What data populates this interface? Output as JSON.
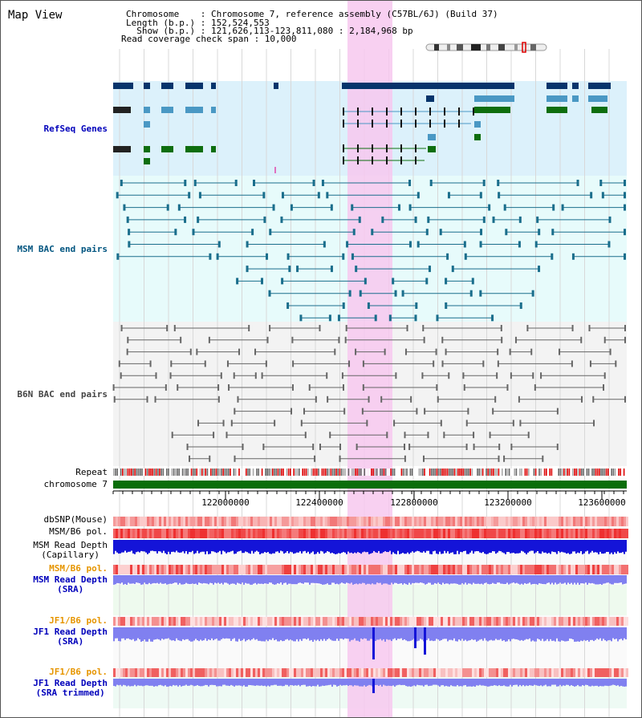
{
  "title": "Map View",
  "info": {
    "chromosome": "Chromosome    : Chromosome 7, reference assembly (C57BL/6J) (Build 37)",
    "length": "Length (b.p.) : 152,524,553",
    "show": "  Show (b.p.) : 121,626,113-123,811,080 : 2,184,968 bp",
    "coverage": "Read coverage check span : 10,000"
  },
  "tracks": {
    "refseq": "RefSeq Genes",
    "msm_bac": "MSM BAC end pairs",
    "b6n_bac": "B6N BAC end pairs",
    "repeat": "Repeat",
    "chromosome": "chromosome 7",
    "dbsnp": "dbSNP(Mouse)",
    "msm_b6_pol": "MSM/B6 pol.",
    "msm_depth_cap": "MSM Read Depth\n(Capillary)",
    "msm_b6_pol2": "MSM/B6 pol.",
    "msm_depth_sra": "MSM Read Depth\n(SRA)",
    "jf1_b6_pol": "JF1/B6 pol.",
    "jf1_depth_sra": "JF1 Read Depth\n(SRA)",
    "jf1_b6_pol2": "JF1/B6 pol.",
    "jf1_depth_trim": "JF1 Read Depth\n(SRA trimmed)"
  },
  "axis": {
    "ticks": [
      "122000000",
      "122400000",
      "122800000",
      "123200000",
      "123600000"
    ]
  },
  "colors": {
    "highlight": "#f7c8ee",
    "refseq_bg": "#dcf1fb",
    "msm_bg": "#e7fbfb",
    "b6n_bg": "#f3f3f3",
    "gene_dark": "#07346b",
    "gene_light": "#4a98c4",
    "gene_green": "#0e6e0e",
    "msm_line": "#1a6e8c",
    "b6n_line": "#666666",
    "chrom": "#0a6e0a",
    "depth_dark": "#1414d8",
    "depth_light": "#8080f0"
  }
}
